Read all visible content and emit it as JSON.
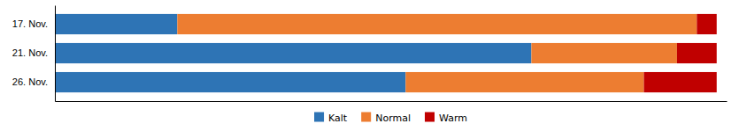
{
  "chart_data": {
    "type": "bar",
    "orientation": "horizontal",
    "stacked": true,
    "categories": [
      "17. Nov.",
      "21. Nov.",
      "26. Nov."
    ],
    "series": [
      {
        "name": "Kalt",
        "color": "#2e74b5",
        "values": [
          18.5,
          72,
          53
        ]
      },
      {
        "name": "Normal",
        "color": "#ed7d31",
        "values": [
          78.5,
          22,
          36
        ]
      },
      {
        "name": "Warm",
        "color": "#c00000",
        "values": [
          3,
          6,
          11
        ]
      }
    ],
    "xlim": [
      0,
      101.5
    ],
    "tick_labels": "y",
    "legend": "bottom"
  }
}
